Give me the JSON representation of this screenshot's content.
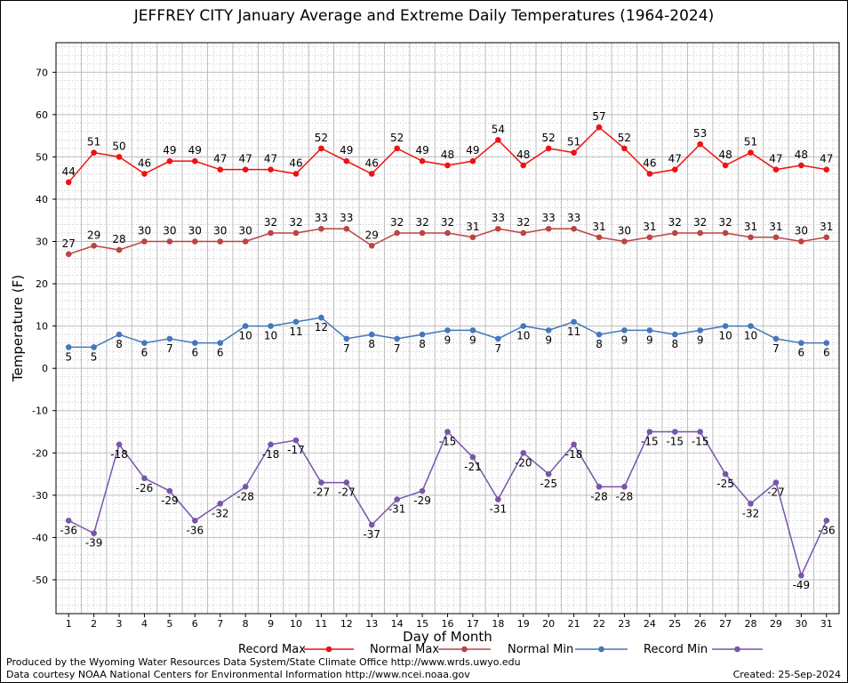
{
  "chart_data": {
    "type": "line",
    "title": "JEFFREY CITY January Average and Extreme Daily Temperatures (1964-2024)",
    "xlabel": "Day of Month",
    "ylabel": "Temperature (F)",
    "ylim": [
      -58,
      77
    ],
    "yticks": [
      -50,
      -40,
      -30,
      -20,
      -10,
      0,
      10,
      20,
      30,
      40,
      50,
      60,
      70
    ],
    "categories": [
      "1",
      "2",
      "3",
      "4",
      "5",
      "6",
      "7",
      "8",
      "9",
      "10",
      "11",
      "12",
      "13",
      "14",
      "15",
      "16",
      "17",
      "18",
      "19",
      "20",
      "21",
      "22",
      "23",
      "24",
      "25",
      "26",
      "27",
      "28",
      "29",
      "30",
      "31"
    ],
    "grid": true,
    "legend_position": "bottom",
    "series": [
      {
        "name": "Record Max",
        "color": "#ee1111",
        "values": [
          44,
          51,
          50,
          46,
          49,
          49,
          47,
          47,
          47,
          46,
          52,
          49,
          46,
          52,
          49,
          48,
          49,
          54,
          48,
          52,
          51,
          57,
          52,
          46,
          47,
          53,
          48,
          51,
          47,
          48,
          47
        ]
      },
      {
        "name": "Normal Max",
        "color": "#bb4444",
        "values": [
          27,
          29,
          28,
          30,
          30,
          30,
          30,
          30,
          32,
          32,
          33,
          33,
          29,
          32,
          32,
          32,
          31,
          33,
          32,
          33,
          33,
          31,
          30,
          31,
          32,
          32,
          32,
          31,
          31,
          30,
          31
        ]
      },
      {
        "name": "Normal Min",
        "color": "#4477bb",
        "values": [
          5,
          5,
          8,
          6,
          7,
          6,
          6,
          10,
          10,
          11,
          12,
          7,
          8,
          7,
          8,
          9,
          9,
          7,
          10,
          9,
          11,
          8,
          9,
          9,
          8,
          9,
          10,
          10,
          7,
          6,
          6
        ]
      },
      {
        "name": "Record Min",
        "color": "#7755aa",
        "values": [
          -36,
          -39,
          -18,
          -26,
          -29,
          -36,
          -32,
          -28,
          -18,
          -17,
          -27,
          -27,
          -37,
          -31,
          -29,
          -15,
          -21,
          -31,
          -20,
          -25,
          -18,
          -28,
          -28,
          -15,
          -15,
          -15,
          -25,
          -32,
          -27,
          -49,
          -36
        ]
      }
    ]
  },
  "credits": {
    "line1": "Produced by the Wyoming Water Resources Data System/State Climate Office http://www.wrds.uwyo.edu",
    "line2": "Data courtesy NOAA National Centers for Environmental Information http://www.ncei.noaa.gov",
    "created": "Created:  25-Sep-2024"
  }
}
